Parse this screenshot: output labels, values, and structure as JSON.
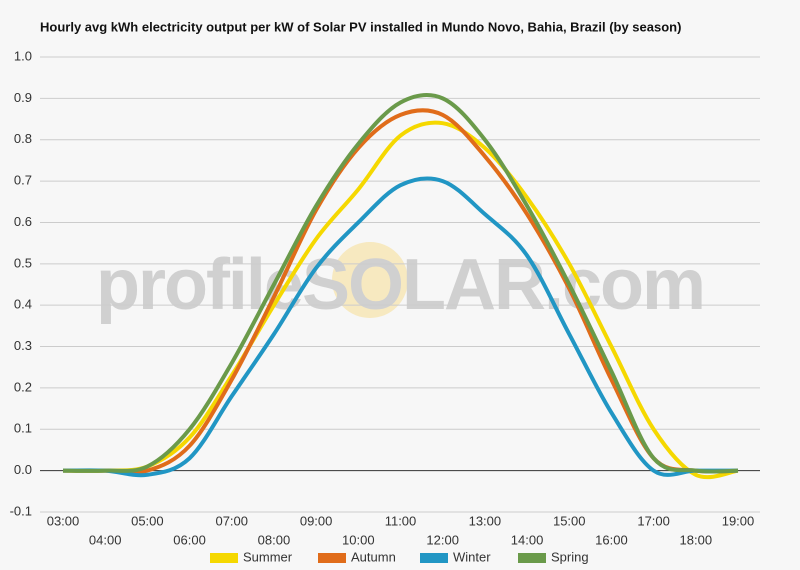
{
  "chart_data": {
    "type": "line",
    "title": "Hourly avg kWh electricity output per kW of Solar PV installed in Mundo Novo, Bahia, Brazil (by season)",
    "watermark": "profileSOLAR.com",
    "categories": [
      "03:00",
      "04:00",
      "05:00",
      "06:00",
      "07:00",
      "08:00",
      "09:00",
      "10:00",
      "11:00",
      "12:00",
      "13:00",
      "14:00",
      "15:00",
      "16:00",
      "17:00",
      "18:00",
      "19:00"
    ],
    "series": [
      {
        "name": "Summer",
        "color": "#f5d800",
        "values": [
          0,
          0,
          0.01,
          0.08,
          0.23,
          0.4,
          0.56,
          0.68,
          0.81,
          0.84,
          0.78,
          0.66,
          0.5,
          0.3,
          0.1,
          -0.01,
          0
        ]
      },
      {
        "name": "Autumn",
        "color": "#e06c1a",
        "values": [
          0,
          0,
          0,
          0.06,
          0.22,
          0.42,
          0.63,
          0.78,
          0.86,
          0.86,
          0.76,
          0.62,
          0.44,
          0.22,
          0.03,
          0,
          0
        ]
      },
      {
        "name": "Winter",
        "color": "#2196c4",
        "values": [
          0,
          0,
          -0.01,
          0.03,
          0.18,
          0.33,
          0.49,
          0.6,
          0.69,
          0.7,
          0.62,
          0.52,
          0.33,
          0.14,
          0,
          0,
          0
        ]
      },
      {
        "name": "Spring",
        "color": "#6a9a4a",
        "values": [
          0,
          0,
          0.01,
          0.1,
          0.26,
          0.45,
          0.64,
          0.79,
          0.89,
          0.9,
          0.8,
          0.64,
          0.45,
          0.24,
          0.03,
          0,
          0
        ]
      }
    ],
    "ylim": [
      -0.1,
      1.0
    ],
    "yticks": [
      -0.1,
      {
        "value": 0,
        "label": "0.0"
      },
      0.1,
      0.2,
      0.3,
      0.4,
      0.5,
      0.6,
      0.7,
      0.8,
      0.9,
      {
        "value": 1,
        "label": "1.0"
      }
    ],
    "grid": true,
    "legend": "bottom"
  }
}
